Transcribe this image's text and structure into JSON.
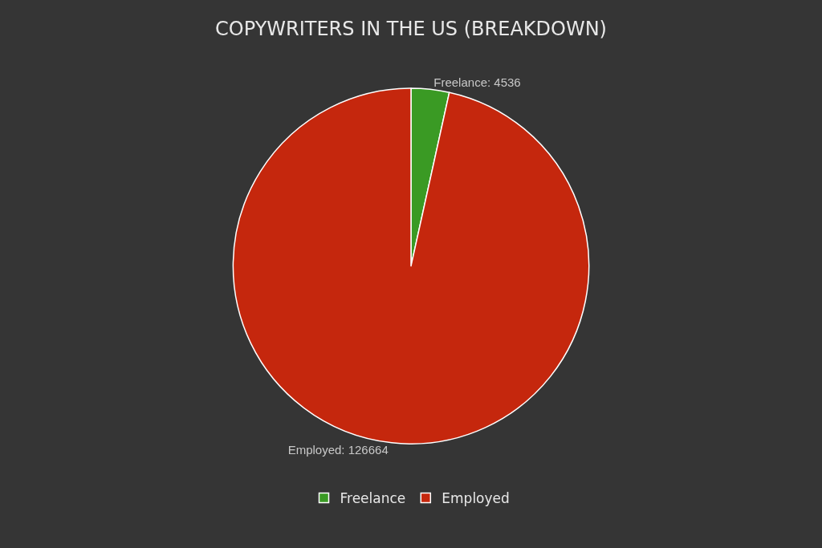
{
  "chart_data": {
    "type": "pie",
    "title": "COPYWRITERS IN THE US (BREAKDOWN)",
    "categories": [
      "Freelance",
      "Employed"
    ],
    "values": [
      4536,
      126664
    ],
    "colors": [
      "#3a9a24",
      "#c5270d"
    ],
    "value_labels": [
      "Freelance: 4536",
      "Employed: 126664"
    ],
    "legend": "bottom"
  }
}
